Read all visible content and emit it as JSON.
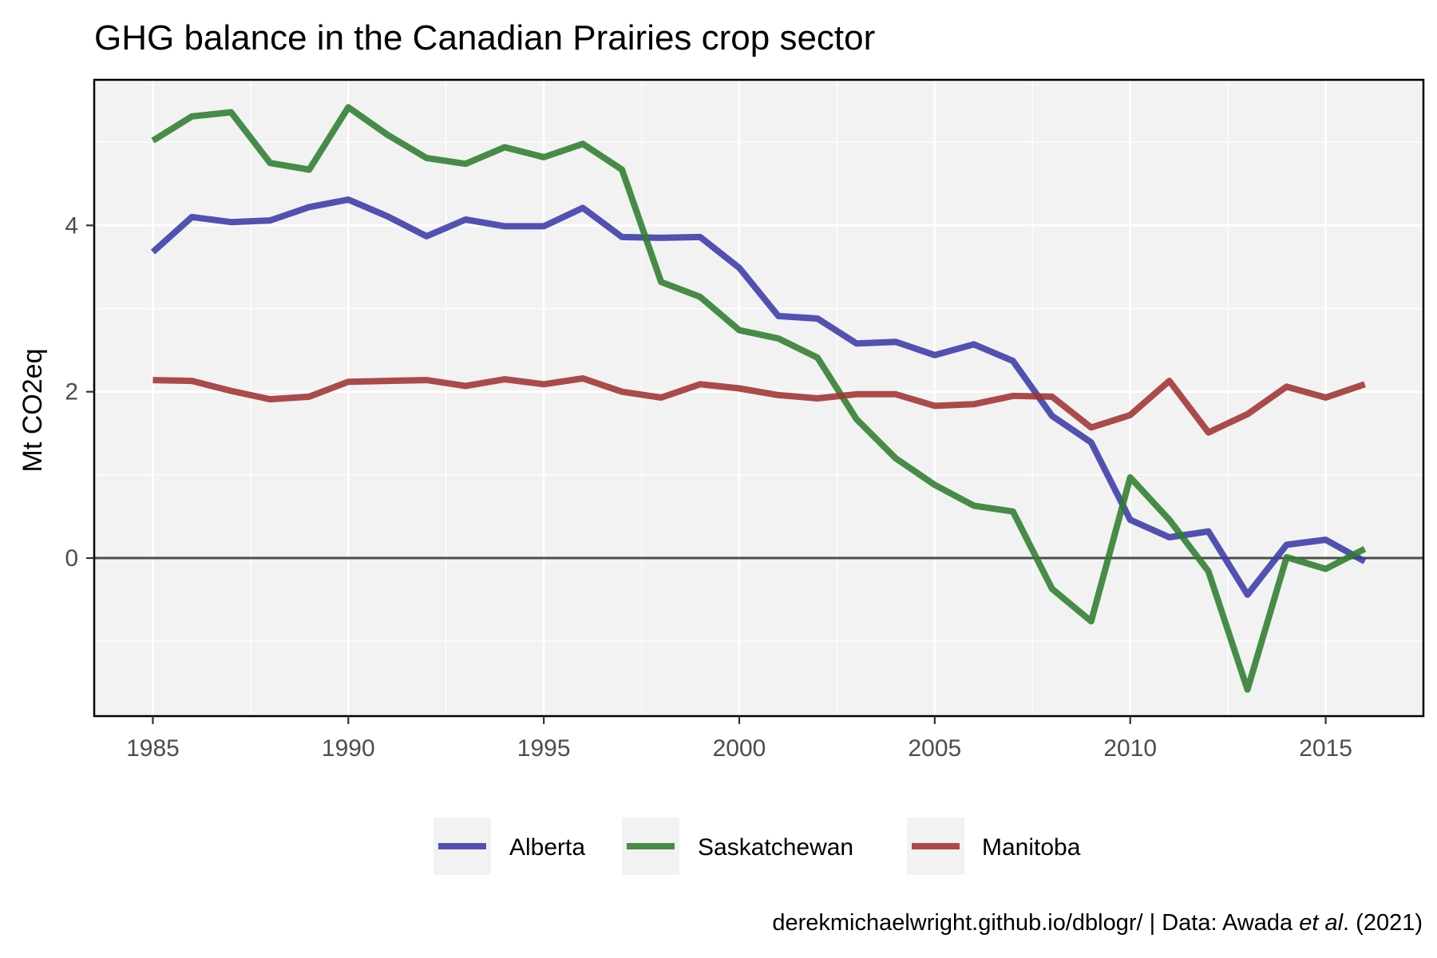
{
  "chart_data": {
    "type": "line",
    "title": "GHG balance in the Canadian Prairies crop sector",
    "xlabel": "",
    "ylabel": "Mt CO2eq",
    "xlim": [
      1983.5,
      2017.5
    ],
    "ylim": [
      -1.9,
      5.75
    ],
    "x_ticks": [
      1985,
      1990,
      1995,
      2000,
      2005,
      2010,
      2015
    ],
    "y_ticks": [
      0,
      2,
      4
    ],
    "grid": true,
    "zero_line": true,
    "legend_position": "bottom",
    "x": [
      1985,
      1986,
      1987,
      1988,
      1989,
      1990,
      1991,
      1992,
      1993,
      1994,
      1995,
      1996,
      1997,
      1998,
      1999,
      2000,
      2001,
      2002,
      2003,
      2004,
      2005,
      2006,
      2007,
      2008,
      2009,
      2010,
      2011,
      2012,
      2013,
      2014,
      2015,
      2016
    ],
    "series": [
      {
        "name": "Alberta",
        "color": "#3a3aa8",
        "values": [
          3.68,
          4.1,
          4.04,
          4.06,
          4.22,
          4.31,
          4.11,
          3.87,
          4.07,
          3.99,
          3.99,
          4.21,
          3.86,
          3.85,
          3.86,
          3.49,
          2.91,
          2.88,
          2.58,
          2.6,
          2.44,
          2.57,
          2.37,
          1.71,
          1.39,
          0.46,
          0.25,
          0.32,
          -0.44,
          0.16,
          0.22,
          -0.04
        ]
      },
      {
        "name": "Saskatchewan",
        "color": "#2e7d2e",
        "values": [
          5.02,
          5.31,
          5.36,
          4.75,
          4.67,
          5.42,
          5.09,
          4.81,
          4.74,
          4.94,
          4.82,
          4.98,
          4.67,
          3.32,
          3.14,
          2.74,
          2.64,
          2.41,
          1.67,
          1.2,
          0.88,
          0.63,
          0.56,
          -0.37,
          -0.76,
          0.97,
          0.46,
          -0.16,
          -1.58,
          0.01,
          -0.13,
          0.11
        ]
      },
      {
        "name": "Manitoba",
        "color": "#a03232",
        "values": [
          2.14,
          2.13,
          2.01,
          1.91,
          1.94,
          2.12,
          2.13,
          2.14,
          2.07,
          2.15,
          2.09,
          2.16,
          2.0,
          1.93,
          2.09,
          2.04,
          1.96,
          1.92,
          1.97,
          1.97,
          1.83,
          1.85,
          1.95,
          1.94,
          1.57,
          1.72,
          2.13,
          1.51,
          1.73,
          2.06,
          1.93,
          2.09
        ]
      }
    ]
  },
  "caption": {
    "prefix": "derekmichaelwright.github.io/dblogr/ | Data: Awada ",
    "italic": "et al",
    "suffix": ". (2021)"
  }
}
